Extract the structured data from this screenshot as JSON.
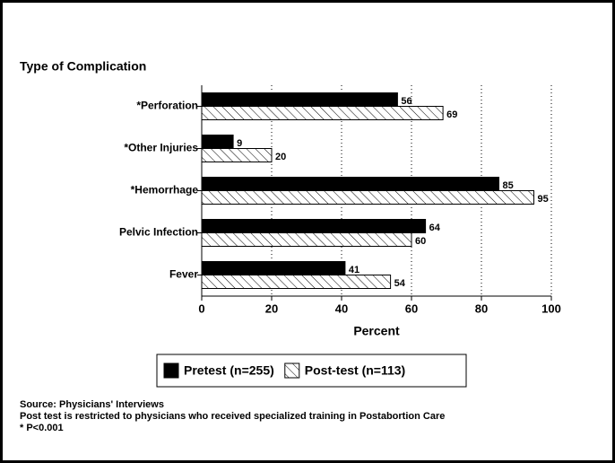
{
  "chart_data": {
    "type": "hbar",
    "title": "Type of Complication",
    "categories": [
      "*Perforation",
      "*Other Injuries",
      "*Hemorrhage",
      "Pelvic Infection",
      "Fever"
    ],
    "series": [
      {
        "name": "Pretest (n=255)",
        "color": "#000000",
        "pattern": "solid",
        "values": [
          56,
          9,
          85,
          64,
          41
        ]
      },
      {
        "name": "Post-test (n=113)",
        "color": "#000000",
        "pattern": "hatch",
        "values": [
          69,
          20,
          95,
          60,
          54
        ]
      }
    ],
    "xlabel": "Percent",
    "xlim": [
      0,
      100
    ],
    "xticks": [
      0,
      20,
      40,
      60,
      80,
      100
    ],
    "grid": true,
    "notes": [
      "Source: Physicians' Interviews",
      "Post test is restricted to physicians who received specialized training in Postabortion Care",
      "* P<0.001"
    ]
  }
}
